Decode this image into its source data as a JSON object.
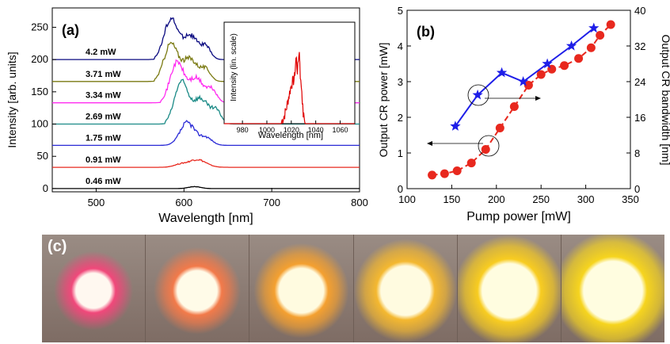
{
  "panel_labels": {
    "a": "(a)",
    "b": "(b)",
    "c": "(c)"
  },
  "chart_data": [
    {
      "type": "line",
      "panel": "(a)",
      "xlabel": "Wavelength [nm]",
      "ylabel": "Intensity [arb. units]",
      "xlim": [
        450,
        800
      ],
      "ylim": [
        -5,
        280
      ],
      "xticks": [
        500,
        600,
        700,
        800
      ],
      "yticks": [
        0,
        50,
        100,
        150,
        200,
        250
      ],
      "series": [
        {
          "name": "0.46 mW",
          "color": "#000000",
          "offset": 0,
          "peak": 3
        },
        {
          "name": "0.91 mW",
          "color": "#e8281e",
          "offset": 33,
          "peak": 12
        },
        {
          "name": "1.75 mW",
          "color": "#2a2ad6",
          "offset": 67,
          "peak": 35
        },
        {
          "name": "2.69 mW",
          "color": "#1a8a86",
          "offset": 100,
          "peak": 65
        },
        {
          "name": "3.34 mW",
          "color": "#ff2cf0",
          "offset": 133,
          "peak": 62
        },
        {
          "name": "3.71 mW",
          "color": "#7a7a12",
          "offset": 166,
          "peak": 58
        },
        {
          "name": "4.2 mW",
          "color": "#0a0a80",
          "offset": 200,
          "peak": 62
        }
      ],
      "inset": {
        "xlabel": "Wavelength [nm]",
        "ylabel": "Intensity (lin. scale)",
        "xlim": [
          965,
          1072
        ],
        "xticks": [
          980,
          1000,
          1020,
          1040,
          1060
        ],
        "color": "#e00000"
      }
    },
    {
      "type": "line",
      "panel": "(b)",
      "xlabel": "Pump power [mW]",
      "ylabel": "Output CR power [mW]",
      "y2label": "Output CR bandwidth [nm]",
      "xlim": [
        100,
        350
      ],
      "ylim": [
        0,
        5
      ],
      "y2lim": [
        0,
        40
      ],
      "xticks": [
        100,
        150,
        200,
        250,
        300,
        350
      ],
      "yticks": [
        0,
        1,
        2,
        3,
        4,
        5
      ],
      "y2ticks": [
        0,
        8,
        16,
        24,
        32,
        40
      ],
      "series": [
        {
          "axis": "left",
          "color": "#e8281e",
          "marker": "circle",
          "x": [
            128,
            142,
            156,
            172,
            188,
            204,
            220,
            236,
            250,
            262,
            276,
            292,
            306,
            316,
            328
          ],
          "y": [
            0.38,
            0.42,
            0.5,
            0.72,
            1.1,
            1.7,
            2.3,
            2.9,
            3.2,
            3.35,
            3.45,
            3.65,
            3.95,
            4.3,
            4.6
          ]
        },
        {
          "axis": "right",
          "color": "#1e1ee8",
          "marker": "star",
          "x": [
            154,
            179,
            206,
            230,
            257,
            284,
            309
          ],
          "y": [
            14,
            21,
            26,
            24,
            28,
            32,
            36
          ]
        }
      ]
    }
  ],
  "photos": {
    "count": 6,
    "ring_colors": [
      "#f0487a",
      "#f27a4a",
      "#f4a030",
      "#f4b830",
      "#f8cc20",
      "#f6d41e"
    ],
    "core_colors": [
      "#fff8f0",
      "#fffbe8",
      "#fffbe0",
      "#fffbe0",
      "#fffde0",
      "#fffde0"
    ]
  }
}
